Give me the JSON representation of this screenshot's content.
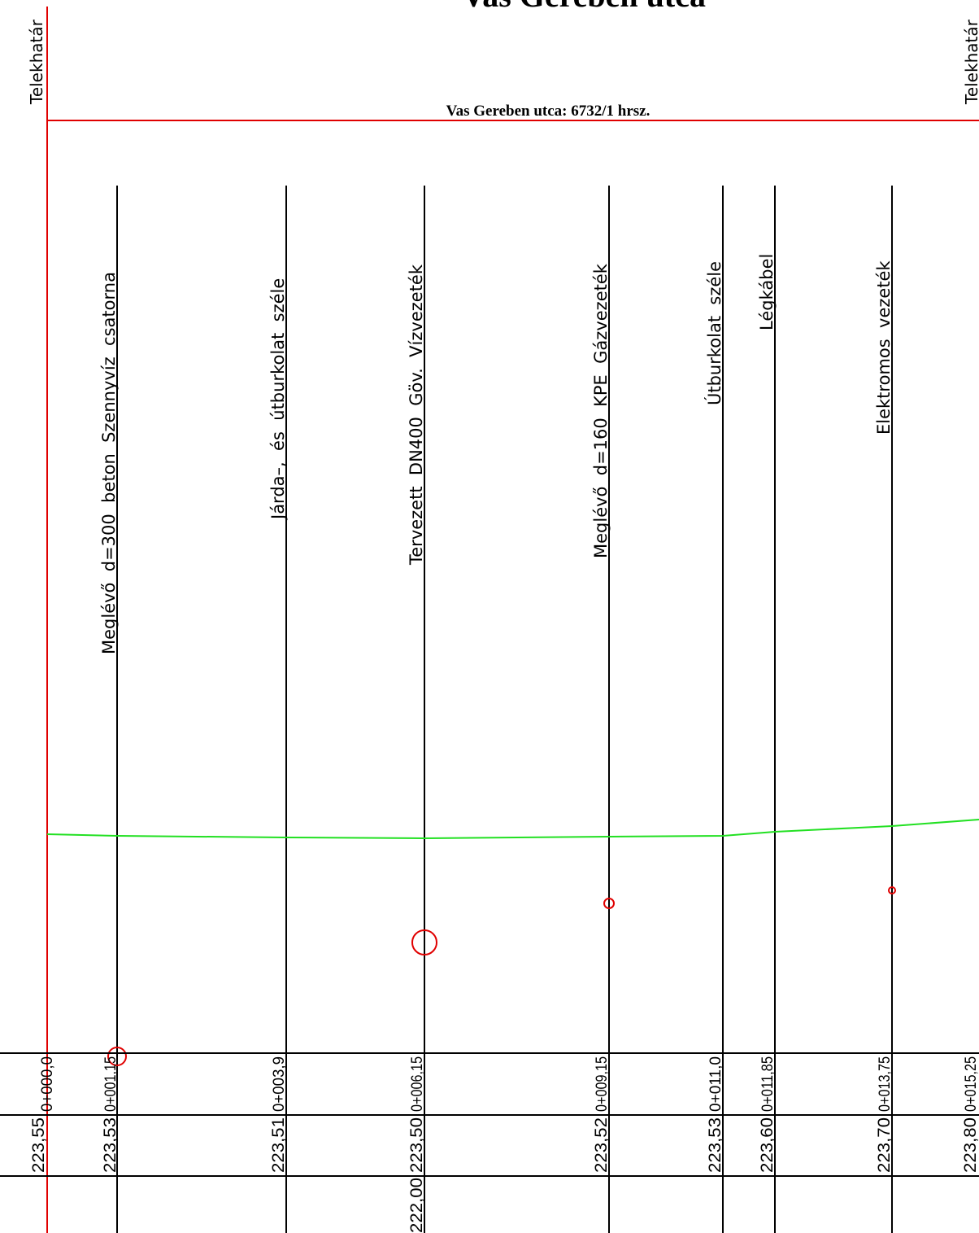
{
  "title": "Vas Gereben utca",
  "subtitle": "Vas Gereben utca: 6732/1 hrsz.",
  "boundary_left_label": "Telekhatár",
  "boundary_right_label": "Telekhatár",
  "colors": {
    "boundary": "#e00000",
    "terrain": "#22e022",
    "utility_marker": "#e00000",
    "line": "#000000"
  },
  "stations": [
    {
      "station": "0+000,0",
      "elevation": "223,55"
    },
    {
      "station": "0+001,15",
      "elevation": "223,53",
      "label": "Meglévő  d=300  beton  Szennyvíz  csatorna"
    },
    {
      "station": "0+003,9",
      "elevation": "223,51",
      "label": "Járda–,  és  útburkolat  széle"
    },
    {
      "station": "0+006,15",
      "elevation": "223,50",
      "label": "Tervezett  DN400  Göv.  Vízvezeték",
      "pipe_level": "222,00"
    },
    {
      "station": "0+009,15",
      "elevation": "223,52",
      "label": "Meglévő  d=160  KPE  Gázvezeték"
    },
    {
      "station": "0+011,0",
      "elevation": "223,53",
      "label": "Útburkolat  széle"
    },
    {
      "station": "0+011,85",
      "elevation": "223,60",
      "label": "Légkábel"
    },
    {
      "station": "0+013,75",
      "elevation": "223,70",
      "label": "Elektromos  vezeték"
    },
    {
      "station": "0+015,25",
      "elevation": "223,80"
    }
  ]
}
